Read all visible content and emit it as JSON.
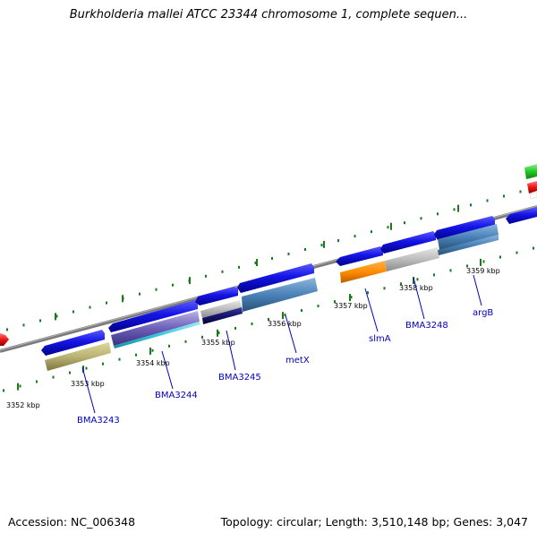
{
  "title": "Burkholderia mallei ATCC 23344 chromosome 1, complete sequen...",
  "footer": {
    "accession": "Accession: NC_006348",
    "summary": "Topology: circular; Length: 3,510,148 bp; Genes: 3,047"
  },
  "colors": {
    "backbone": "#7f7f7f",
    "tick": "#1a7a1a",
    "gene_blue": "#1414e6",
    "label": "#0000c0"
  },
  "ticks": [
    {
      "label": "3352 kbp"
    },
    {
      "label": "3353 kbp"
    },
    {
      "label": "3354 kbp"
    },
    {
      "label": "3355 kbp"
    },
    {
      "label": "3356 kbp"
    },
    {
      "label": "3357 kbp"
    },
    {
      "label": "3358 kbp"
    },
    {
      "label": "3359 kbp"
    }
  ],
  "genes": [
    {
      "label": "BMA3243"
    },
    {
      "label": "BMA3244"
    },
    {
      "label": "BMA3245"
    },
    {
      "label": "metX"
    },
    {
      "label": "slmA"
    },
    {
      "label": "BMA3248"
    },
    {
      "label": "argB"
    }
  ]
}
